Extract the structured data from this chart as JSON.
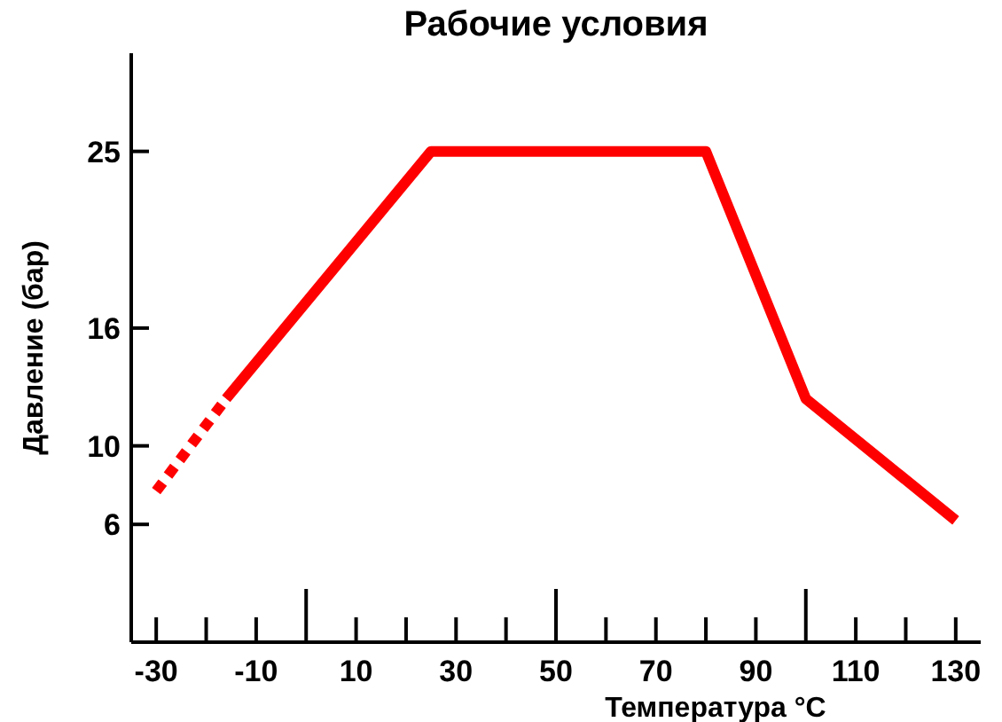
{
  "chart_data": {
    "type": "line",
    "title": "Рабочие условия",
    "xlabel": "Температура °C",
    "ylabel": "Давление (бар)",
    "xlim": [
      -35,
      135
    ],
    "ylim": [
      0,
      30
    ],
    "xticks": [
      -30,
      {
        "value": -20,
        "label": null
      },
      -10,
      {
        "value": 0,
        "label": null
      },
      10,
      {
        "value": 20,
        "label": null
      },
      30,
      {
        "value": 40,
        "label": null
      },
      50,
      {
        "value": 60,
        "label": null
      },
      70,
      {
        "value": 80,
        "label": null
      },
      90,
      {
        "value": 100,
        "label": null
      },
      110,
      {
        "value": 120,
        "label": null
      },
      130
    ],
    "yticks": [
      6,
      10,
      16,
      25
    ],
    "grid": false,
    "marker": "none",
    "series": [
      {
        "color": "#ff0000",
        "line_style": "dashed",
        "x": [
          -30,
          -16
        ],
        "values": [
          7.7,
          12.4
        ]
      },
      {
        "color": "#ff0000",
        "line_style": "solid",
        "x": [
          -16,
          25,
          80,
          100,
          130
        ],
        "values": [
          12.4,
          25,
          25,
          12.4,
          6.2
        ]
      }
    ]
  }
}
